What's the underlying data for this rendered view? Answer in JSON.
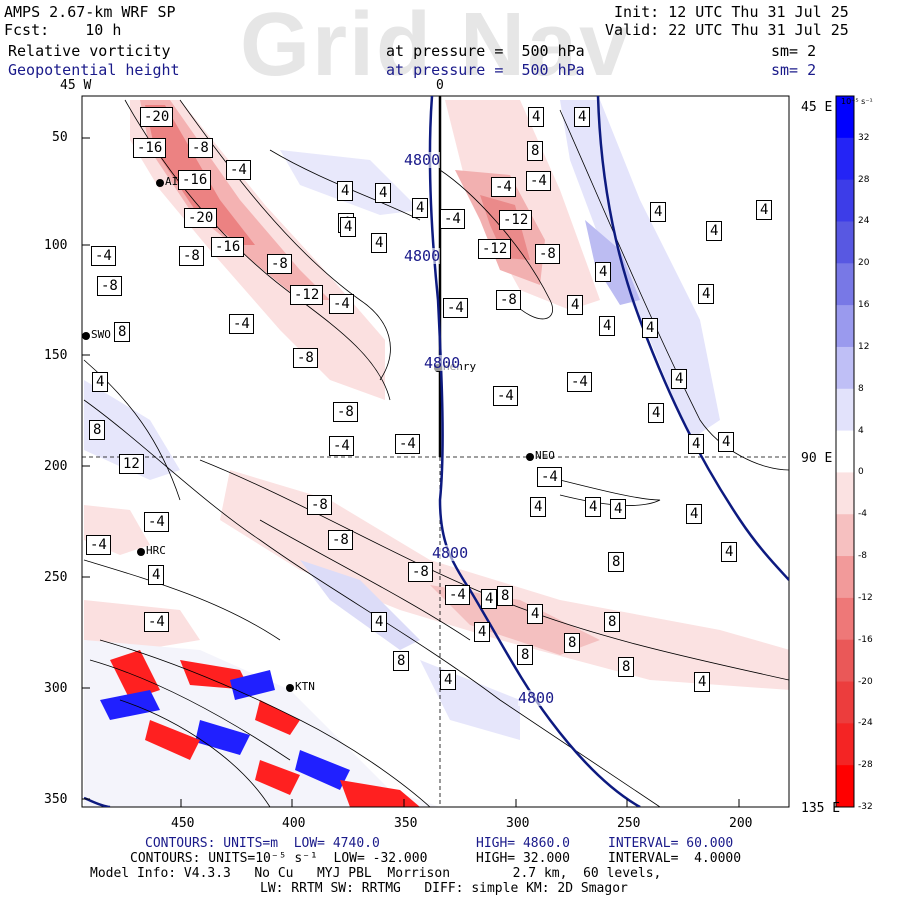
{
  "watermark": "Grid Nav",
  "header": {
    "model": "AMPS 2.67-km WRF SP",
    "fcst": "Fcst:    10 h",
    "init": "Init: 12 UTC Thu 31 Jul 25",
    "valid": "Valid: 22 UTC Thu 31 Jul 25",
    "field1": "Relative vorticity",
    "field1_level": "at pressure =  500 hPa",
    "field1_sm": "sm= 2",
    "field2": "Geopotential height",
    "field2_level": "at pressure =  500 hPa",
    "field2_sm": "sm= 2"
  },
  "lon_top": [
    "45 W",
    "0"
  ],
  "lon_right": [
    "45 E",
    "90 E",
    "135 E"
  ],
  "y_ticks": [
    "50",
    "100",
    "150",
    "200",
    "250",
    "300",
    "350"
  ],
  "x_ticks": [
    "450",
    "400",
    "350",
    "300",
    "250",
    "200"
  ],
  "stations": [
    "SWO",
    "HRC",
    "KTN",
    "NEO",
    "Henry",
    "AIO"
  ],
  "contour_labels": {
    "height": [
      "4800",
      "4800",
      "4800",
      "4800",
      "4800"
    ],
    "vort": [
      "-20",
      "-16",
      "-16",
      "-20",
      "-16",
      "-8",
      "-12",
      "-8",
      "-8",
      "-4",
      "-4",
      "-4",
      "-4",
      "-8",
      "-4",
      "-4",
      "-8",
      "-12",
      "-12",
      "-8",
      "-4",
      "-4",
      "-4",
      "-8",
      "-4",
      "-4",
      "-8",
      "-4",
      "-4",
      "-8",
      "-8",
      "-8",
      "-4",
      "-4",
      "-4",
      "-4",
      "4",
      "4",
      "4",
      "8",
      "8",
      "8",
      "8",
      "4",
      "4",
      "8",
      "4",
      "8",
      "12",
      "4",
      "4",
      "4",
      "4",
      "4",
      "8",
      "4",
      "4",
      "4",
      "4",
      "4",
      "4",
      "4",
      "4",
      "4",
      "8",
      "4",
      "4",
      "4",
      "4",
      "4",
      "4",
      "4",
      "4",
      "4",
      "4",
      "4",
      "4",
      "8",
      "8",
      "4"
    ]
  },
  "colorbar": {
    "unit": "10⁻⁵ s⁻¹",
    "levels": [
      "32",
      "28",
      "24",
      "20",
      "16",
      "12",
      "8",
      "4",
      "0",
      "-4",
      "-8",
      "-12",
      "-16",
      "-20",
      "-24",
      "-28",
      "-32"
    ],
    "colors": [
      "#0000ff",
      "#2424f6",
      "#3d3de8",
      "#5858e2",
      "#7878e6",
      "#9a9aee",
      "#bfbff6",
      "#e2e2fb",
      "#ffffff",
      "#fbe2e2",
      "#f6c0c0",
      "#f29a9a",
      "#ee7878",
      "#ea5858",
      "#ec3d3d",
      "#f42424",
      "#ff0000"
    ]
  },
  "footer": {
    "line1_prefix": "CONTOURS: UNITS=m  LOW= 4740.0",
    "line1_high": "HIGH= 4860.0",
    "line1_int": "INTERVAL= 60.000",
    "line2_prefix": "CONTOURS: UNITS=10⁻⁵ s⁻¹  LOW= -32.000",
    "line2_high": "HIGH= 32.000",
    "line2_int": "INTERVAL=  4.0000",
    "line3": "Model Info: V4.3.3   No Cu   MYJ PBL  Morrison        2.7 km,  60 levels,",
    "line4": "LW: RRTM SW: RRTMG   DIFF: simple KM: 2D Smagor"
  },
  "colors": {
    "height_contour": "#0d1a80",
    "frame": "#000000",
    "title_blue": "#1a1a8a"
  }
}
